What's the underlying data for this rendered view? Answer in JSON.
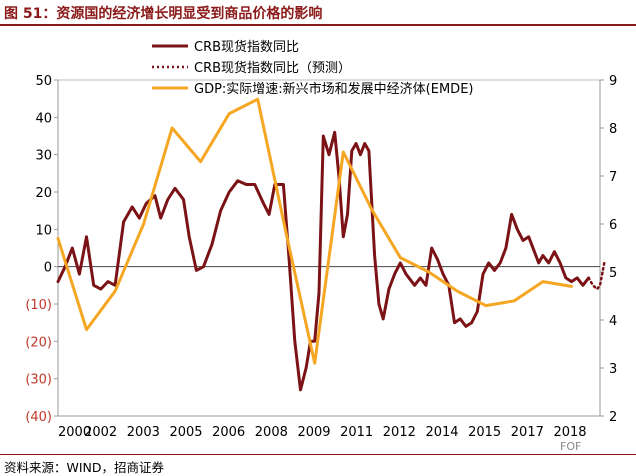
{
  "title": "图 51：资源国的经济增长明显受到商品价格的影响",
  "source": "资料来源：WIND，招商证券",
  "watermark": "FOF",
  "colors": {
    "crb": "#7b1316",
    "gdp": "#f5a623",
    "axis_red": "#c0392b",
    "frame": "#8b1a1a"
  },
  "chart_data": {
    "type": "line",
    "xlim": [
      2000,
      2019
    ],
    "x_ticks": [
      "2000",
      "2002",
      "2003",
      "2005",
      "2006",
      "2008",
      "2009",
      "2011",
      "2012",
      "2014",
      "2015",
      "2017",
      "2018"
    ],
    "y_left": {
      "ylim": [
        -40,
        50
      ],
      "ticks": [
        50,
        40,
        30,
        20,
        10,
        0,
        -10,
        -20,
        -30,
        -40
      ],
      "tick_labels": [
        "50",
        "40",
        "30",
        "20",
        "10",
        "0",
        "(10)",
        "(20)",
        "(30)",
        "(40)"
      ]
    },
    "y_right": {
      "ylim": [
        2,
        9
      ],
      "ticks": [
        9,
        8,
        7,
        6,
        5,
        4,
        3,
        2
      ],
      "tick_labels": [
        "9",
        "8",
        "7",
        "6",
        "5",
        "4",
        "3",
        "2"
      ]
    },
    "legend": [
      "CRB现货指数同比",
      "CRB现货指数同比（预测）",
      "GDP:实际增速:新兴市场和发展中经济体(EMDE)"
    ],
    "series": [
      {
        "name": "CRB现货指数同比",
        "axis": "left",
        "style": "solid",
        "x": [
          2000.0,
          2000.25,
          2000.5,
          2000.75,
          2001.0,
          2001.25,
          2001.5,
          2001.75,
          2002.0,
          2002.3,
          2002.6,
          2002.85,
          2003.1,
          2003.4,
          2003.6,
          2003.85,
          2004.1,
          2004.4,
          2004.6,
          2004.85,
          2005.1,
          2005.4,
          2005.7,
          2006.0,
          2006.3,
          2006.6,
          2006.9,
          2007.2,
          2007.4,
          2007.6,
          2007.9,
          2008.1,
          2008.3,
          2008.5,
          2008.7,
          2008.85,
          2009.0,
          2009.15,
          2009.3,
          2009.5,
          2009.7,
          2009.85,
          2010.0,
          2010.15,
          2010.3,
          2010.45,
          2010.6,
          2010.75,
          2010.9,
          2011.1,
          2011.25,
          2011.4,
          2011.6,
          2011.8,
          2012.0,
          2012.2,
          2012.5,
          2012.7,
          2012.9,
          2013.1,
          2013.3,
          2013.5,
          2013.7,
          2013.9,
          2014.1,
          2014.3,
          2014.5,
          2014.7,
          2014.9,
          2015.1,
          2015.3,
          2015.5,
          2015.7,
          2015.9,
          2016.1,
          2016.3,
          2016.5,
          2016.7,
          2016.85,
          2017.0,
          2017.2,
          2017.4,
          2017.6,
          2017.8,
          2018.0,
          2018.2,
          2018.4,
          2018.6
        ],
        "y": [
          -4,
          0,
          5,
          -2,
          8,
          -5,
          -6,
          -4,
          -5,
          12,
          16,
          13,
          17,
          19,
          13,
          18,
          21,
          18,
          8,
          -1,
          0,
          6,
          15,
          20,
          23,
          22,
          22,
          17,
          14,
          22,
          22,
          2,
          -20,
          -33,
          -27,
          -20,
          -20,
          -7,
          35,
          30,
          36,
          24,
          8,
          14,
          31,
          33,
          30,
          33,
          31,
          3,
          -10,
          -14,
          -6,
          -2,
          1,
          -2,
          -5,
          -3,
          -5,
          5,
          2,
          -2,
          -5,
          -15,
          -14,
          -16,
          -15,
          -12,
          -2,
          1,
          -1,
          1,
          5,
          14,
          10,
          7,
          8,
          4,
          1,
          3,
          1,
          4,
          1,
          -3,
          -4,
          -3,
          -5,
          -3
        ]
      },
      {
        "name": "CRB现货指数同比（预测）",
        "axis": "left",
        "style": "dotted",
        "x": [
          2018.6,
          2018.75,
          2018.9,
          2019.0,
          2019.15
        ],
        "y": [
          -3,
          -5,
          -6,
          -5,
          1
        ]
      },
      {
        "name": "GDP:实际增速:新兴市场和发展中经济体(EMDE)",
        "axis": "right",
        "style": "solid",
        "x": [
          2000,
          2001,
          2002,
          2003,
          2004,
          2005,
          2006,
          2007,
          2008,
          2009,
          2010,
          2011,
          2012,
          2013,
          2014,
          2015,
          2016,
          2017,
          2018
        ],
        "y": [
          5.7,
          3.8,
          4.6,
          6.0,
          8.0,
          7.3,
          8.3,
          8.6,
          5.8,
          3.1,
          7.5,
          6.3,
          5.3,
          5.0,
          4.6,
          4.3,
          4.4,
          4.8,
          4.7
        ]
      }
    ]
  }
}
